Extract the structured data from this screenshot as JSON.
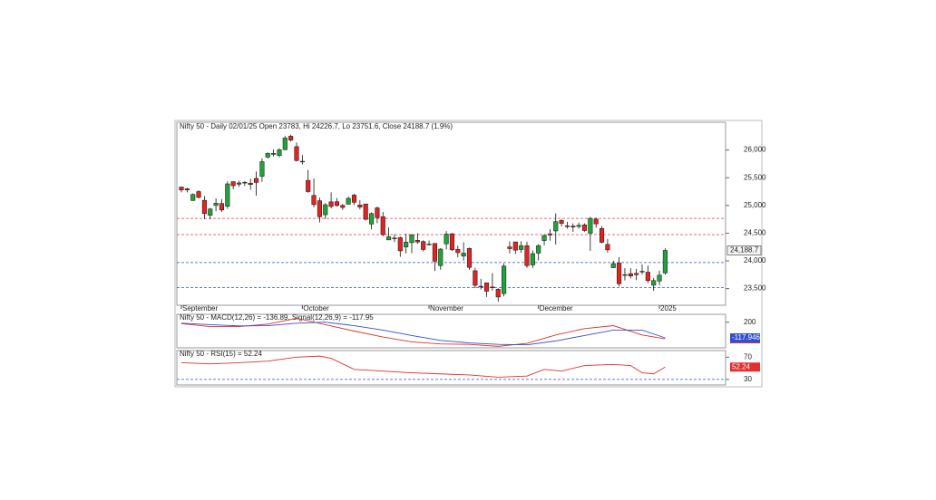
{
  "chart_data": [
    {
      "type": "candlestick",
      "title": "Nifty 50 - Daily 02/01/25 Open 23783, Hi 24226.7, Lo 23751.6, Close 24188.7 (1.9%)",
      "categories": [
        "September",
        null,
        null,
        null,
        null,
        null,
        null,
        null,
        null,
        null,
        null,
        null,
        null,
        null,
        null,
        null,
        null,
        null,
        null,
        null,
        null,
        "October",
        null,
        null,
        null,
        null,
        null,
        null,
        null,
        null,
        null,
        null,
        null,
        null,
        null,
        null,
        null,
        null,
        null,
        null,
        null,
        null,
        null,
        "November",
        null,
        null,
        null,
        null,
        null,
        null,
        null,
        null,
        null,
        null,
        null,
        null,
        null,
        null,
        null,
        null,
        null,
        null,
        "December",
        null,
        null,
        null,
        null,
        null,
        null,
        null,
        null,
        null,
        null,
        null,
        null,
        null,
        null,
        null,
        null,
        null,
        null,
        null,
        null,
        "2025",
        null
      ],
      "open": [
        25333,
        25300,
        25089,
        25250,
        25093,
        24823,
        24999,
        25035,
        24985,
        25430,
        25406,
        25404,
        25402,
        25487,
        25526,
        25872,
        25921,
        25899,
        26006,
        26248,
        26061,
        25788,
        25452,
        25181,
        25085,
        24832,
        25065,
        25067,
        25000,
        25023,
        25186,
        25008,
        25027,
        24664,
        24956,
        24798,
        24378,
        24412,
        24419,
        24251,
        24329,
        24371,
        24349,
        24302,
        24315,
        23916,
        24308,
        24489,
        24207,
        24087,
        24225,
        23822,
        23542,
        23605,
        23529,
        23488,
        23411,
        24253,
        24343,
        24204,
        24275,
        23927,
        24140,
        24367,
        24489,
        24540,
        24729,
        24633,
        24628,
        24620,
        24651,
        24498,
        24753,
        24585,
        24297,
        23877,
        23960,
        23738,
        23770,
        23775,
        23801,
        23796,
        23561,
        23637,
        23783
      ],
      "high": [
        25333,
        25321,
        25216,
        25275,
        25168,
        24957,
        25130,
        25113,
        25433,
        25430,
        25445,
        25441,
        25482,
        25611,
        25849,
        25956,
        26011,
        26032,
        26250,
        26277,
        26134,
        25907,
        25639,
        25485,
        25143,
        25044,
        25234,
        25134,
        25028,
        25159,
        25212,
        25093,
        25029,
        24874,
        24978,
        24882,
        24605,
        24480,
        24440,
        24492,
        24484,
        24499,
        24372,
        24368,
        24316,
        24229,
        24537,
        24503,
        24276,
        24336,
        24242,
        23873,
        23676,
        23606,
        23780,
        23507,
        23956,
        24352,
        24343,
        24354,
        24345,
        24189,
        24301,
        24481,
        24573,
        24857,
        24751,
        24705,
        24677,
        24691,
        24676,
        24792,
        24781,
        24625,
        24394,
        24004,
        24066,
        23869,
        23867,
        23855,
        23938,
        23915,
        23689,
        23822,
        24226.7
      ],
      "low": [
        25235,
        25235,
        25083,
        25127,
        24753,
        24753,
        24897,
        24885,
        24941,
        25292,
        25336,
        25352,
        25285,
        25176,
        25426,
        25847,
        25886,
        25871,
        25998,
        26151,
        25794,
        25739,
        25230,
        24966,
        24694,
        24756,
        24947,
        24979,
        24920,
        25017,
        25008,
        24929,
        24728,
        24568,
        24679,
        24446,
        24378,
        24341,
        24074,
        24134,
        24140,
        24307,
        24172,
        24280,
        23816,
        23842,
        24204,
        24179,
        24066,
        24004,
        23839,
        23509,
        23484,
        23350,
        23464,
        23263,
        23359,
        24135,
        24125,
        24145,
        23874,
        23873,
        24008,
        24281,
        24366,
        24296,
        24621,
        24580,
        24524,
        24583,
        24527,
        24180,
        24601,
        24315,
        24149,
        23871,
        23538,
        23647,
        23685,
        23653,
        23760,
        23600,
        23460,
        23562,
        23751.6
      ],
      "close": [
        25279,
        25279,
        25198,
        25145,
        24852,
        24936,
        25041,
        24918,
        25389,
        25356,
        25383,
        25418,
        25377,
        25415,
        25790,
        25939,
        25940,
        26004,
        26216,
        26179,
        25810,
        25797,
        25250,
        25015,
        24796,
        25013,
        24982,
        24998,
        24964,
        25128,
        25057,
        24971,
        24750,
        24854,
        24781,
        24472,
        24435,
        24399,
        24181,
        24339,
        24467,
        24341,
        24205,
        24304,
        23995,
        24213,
        24484,
        24199,
        24148,
        24141,
        23883,
        23559,
        23533,
        23453,
        23518,
        23349,
        23907,
        24221,
        24194,
        24275,
        23914,
        24131,
        24276,
        24457,
        24467,
        24708,
        24677,
        24619,
        24610,
        24641,
        24548,
        24768,
        24668,
        24336,
        24199,
        23951,
        23587,
        23753,
        23727,
        23750,
        23813,
        23644,
        23645,
        23742,
        24188.7
      ],
      "up_color": "#22a33a",
      "down_color": "#e02424",
      "ylim": [
        23200,
        26500
      ],
      "yticks": [
        {
          "value": 23500,
          "label": "23,500"
        },
        {
          "value": 24000,
          "label": "24,000"
        },
        {
          "value": 24500,
          "label": "24,500"
        },
        {
          "value": 25000,
          "label": "25,000"
        },
        {
          "value": 25500,
          "label": "25,500"
        },
        {
          "value": 26000,
          "label": "26,000"
        }
      ],
      "hlines": [
        {
          "value": 24766,
          "color": "#e04040"
        },
        {
          "value": 24474,
          "color": "#e04040"
        },
        {
          "value": 23970,
          "color": "#3050d0"
        },
        {
          "value": 23516,
          "color": "#3050d0"
        }
      ],
      "last_price": {
        "value": 24188.7,
        "label": "24,188.7"
      }
    },
    {
      "type": "line",
      "title": "Nifty 50 - MACD(12,26) = -136.89, Signal(12,26,9) = -117.95",
      "ylim": [
        -320,
        360
      ],
      "yticks": [
        200
      ],
      "series": [
        {
          "name": "MACD(12,26)",
          "color": "#e03030",
          "x": [
            0,
            5,
            10,
            15,
            20,
            25,
            30,
            35,
            40,
            45,
            50,
            55,
            60,
            65,
            70,
            75,
            80,
            84
          ],
          "values": [
            170,
            110,
            110,
            160,
            280,
            150,
            20,
            -100,
            -200,
            -240,
            -250,
            -290,
            -230,
            -60,
            70,
            130,
            -60,
            -136.89
          ],
          "end_label": {
            "value": -136.89,
            "label": "-136.89"
          }
        },
        {
          "name": "Signal(12,26,9)",
          "color": "#3050d0",
          "x": [
            0,
            5,
            10,
            15,
            20,
            25,
            30,
            35,
            40,
            45,
            50,
            55,
            60,
            65,
            70,
            75,
            80,
            84
          ],
          "values": [
            180,
            150,
            125,
            130,
            180,
            200,
            130,
            40,
            -70,
            -170,
            -220,
            -250,
            -260,
            -180,
            -70,
            40,
            40,
            -117.946
          ],
          "end_label": {
            "value": -117.946,
            "label": "-117.946"
          }
        }
      ]
    },
    {
      "type": "line",
      "title": "Nifty 50 - RSI(15) = 52.24",
      "ylim": [
        20,
        82
      ],
      "yticks": [
        30,
        70
      ],
      "hlines": [
        {
          "value": 30,
          "color": "#3050d0"
        }
      ],
      "series": [
        {
          "name": "RSI(15)",
          "color": "#e03030",
          "x": [
            0,
            5,
            10,
            15,
            20,
            24,
            26,
            30,
            35,
            40,
            45,
            50,
            55,
            60,
            63,
            66,
            70,
            75,
            78,
            80,
            82,
            84
          ],
          "values": [
            60,
            58,
            60,
            63,
            70,
            72,
            68,
            48,
            45,
            42,
            40,
            38,
            34,
            36,
            48,
            45,
            55,
            57,
            55,
            42,
            40,
            52.24
          ],
          "end_label": {
            "value": 52.24,
            "label": "52.24"
          }
        }
      ]
    }
  ]
}
